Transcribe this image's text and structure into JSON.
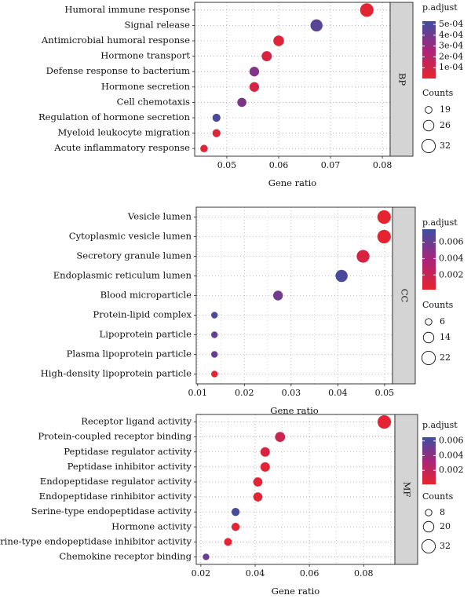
{
  "colors": {
    "low_padj": "#e8242d",
    "mid_padj": "#a8257a",
    "high_padj": "#3d4fa0",
    "strip": "#d4d4d4"
  },
  "chart_data": [
    {
      "type": "scatter",
      "panel": "BP",
      "xlabel": "Gene ratio",
      "xlim": [
        0.0438,
        0.0815
      ],
      "xticks": [
        "0.05",
        "0.06",
        "0.07",
        "0.08"
      ],
      "xtick_values": [
        0.05,
        0.06,
        0.07,
        0.08
      ],
      "terms": [
        {
          "label": "Humoral immune response",
          "ratio": 0.077,
          "padj": 2e-05,
          "count": 32
        },
        {
          "label": "Signal release",
          "ratio": 0.0673,
          "padj": 0.00046,
          "count": 29
        },
        {
          "label": "Antimicrobial humoral response",
          "ratio": 0.06,
          "padj": 4e-05,
          "count": 26
        },
        {
          "label": "Hormone transport",
          "ratio": 0.0577,
          "padj": 7e-05,
          "count": 25
        },
        {
          "label": "Defense response to bacterium",
          "ratio": 0.0553,
          "padj": 0.00036,
          "count": 24
        },
        {
          "label": "Hormone secretion",
          "ratio": 0.0553,
          "padj": 8e-05,
          "count": 24
        },
        {
          "label": "Cell chemotaxis",
          "ratio": 0.0529,
          "padj": 0.00038,
          "count": 23
        },
        {
          "label": "Regulation of hormone secretion",
          "ratio": 0.048,
          "padj": 0.00049,
          "count": 21
        },
        {
          "label": "Myeloid leukocyte migration",
          "ratio": 0.048,
          "padj": 4e-05,
          "count": 21
        },
        {
          "label": "Acute inflammatory response",
          "ratio": 0.0456,
          "padj": 3e-05,
          "count": 20
        }
      ],
      "legend": {
        "color_title": "p.adjust",
        "color_min": 0.0,
        "color_max": 0.00053,
        "color_ticks": [
          "5e-04",
          "4e-04",
          "3e-04",
          "2e-04",
          "1e-04"
        ],
        "color_tick_values": [
          0.0005,
          0.0004,
          0.0003,
          0.0002,
          0.0001
        ],
        "size_title": "Counts",
        "size_ticks": [
          "19",
          "26",
          "32"
        ],
        "size_values": [
          19,
          26,
          32
        ]
      },
      "size_range": [
        19,
        32
      ],
      "radius_range": [
        4.4,
        8.6
      ]
    },
    {
      "type": "scatter",
      "panel": "CC",
      "xlabel": "Gene ratio",
      "xlim": [
        0.0097,
        0.0517
      ],
      "xticks": [
        "0.01",
        "0.02",
        "0.03",
        "0.04",
        "0.05"
      ],
      "xtick_values": [
        0.01,
        0.02,
        0.03,
        0.04,
        0.05
      ],
      "terms": [
        {
          "label": "Vesicle lumen",
          "ratio": 0.0499,
          "padj": 0.0003,
          "count": 22
        },
        {
          "label": "Cytoplasmic vesicle lumen",
          "ratio": 0.0499,
          "padj": 0.0003,
          "count": 22
        },
        {
          "label": "Secretory granule lumen",
          "ratio": 0.0454,
          "padj": 0.0011,
          "count": 20
        },
        {
          "label": "Endoplasmic reticulum lumen",
          "ratio": 0.0408,
          "padj": 0.0072,
          "count": 18
        },
        {
          "label": "Blood microparticle",
          "ratio": 0.0272,
          "padj": 0.0058,
          "count": 12
        },
        {
          "label": "Protein-lipid complex",
          "ratio": 0.0136,
          "padj": 0.0072,
          "count": 6
        },
        {
          "label": "Lipoprotein particle",
          "ratio": 0.0136,
          "padj": 0.0062,
          "count": 6
        },
        {
          "label": "Plasma lipoprotein particle",
          "ratio": 0.0136,
          "padj": 0.0062,
          "count": 6
        },
        {
          "label": "High-density lipoprotein particle",
          "ratio": 0.0136,
          "padj": 0.0003,
          "count": 6
        }
      ],
      "legend": {
        "color_title": "p.adjust",
        "color_min": 0.0002,
        "color_max": 0.0076,
        "color_ticks": [
          "0.006",
          "0.004",
          "0.002"
        ],
        "color_tick_values": [
          0.006,
          0.004,
          0.002
        ],
        "size_title": "Counts",
        "size_ticks": [
          "6",
          "14",
          "22"
        ],
        "size_values": [
          6,
          14,
          22
        ]
      },
      "size_range": [
        6,
        22
      ],
      "radius_range": [
        4.2,
        8.6
      ]
    },
    {
      "type": "scatter",
      "panel": "MF",
      "xlabel": "Gene ratio",
      "xlim": [
        0.0183,
        0.0915
      ],
      "xticks": [
        "0.02",
        "0.04",
        "0.06",
        "0.08"
      ],
      "xtick_values": [
        0.02,
        0.04,
        0.06,
        0.08
      ],
      "terms": [
        {
          "label": "Receptor ligand activity",
          "ratio": 0.0876,
          "padj": 0.0003,
          "count": 32
        },
        {
          "label": "Protein-coupled receptor binding",
          "ratio": 0.0492,
          "padj": 0.0016,
          "count": 18
        },
        {
          "label": "Peptidase regulator activity",
          "ratio": 0.0437,
          "padj": 0.0009,
          "count": 16
        },
        {
          "label": "Peptidase inhibitor activity",
          "ratio": 0.0437,
          "padj": 0.0003,
          "count": 16
        },
        {
          "label": "Endopeptidase regulator activity",
          "ratio": 0.041,
          "padj": 0.0003,
          "count": 15
        },
        {
          "label": "Endopeptidase rinhibitor activity",
          "ratio": 0.041,
          "padj": 0.0003,
          "count": 15
        },
        {
          "label": "Serine-type endopeptidase activity",
          "ratio": 0.0328,
          "padj": 0.0062,
          "count": 12
        },
        {
          "label": "Hormone activity",
          "ratio": 0.0328,
          "padj": 0.0003,
          "count": 12
        },
        {
          "label": "Serine-type endopeptidase inhibitor activity",
          "ratio": 0.03,
          "padj": 0.0003,
          "count": 11
        },
        {
          "label": "Chemokine receptor binding",
          "ratio": 0.0219,
          "padj": 0.0052,
          "count": 8
        }
      ],
      "legend": {
        "color_title": "p.adjust",
        "color_min": 0.0001,
        "color_max": 0.0065,
        "color_ticks": [
          "0.006",
          "0.004",
          "0.002"
        ],
        "color_tick_values": [
          0.006,
          0.004,
          0.002
        ],
        "size_title": "Counts",
        "size_ticks": [
          "8",
          "20",
          "32"
        ],
        "size_values": [
          8,
          20,
          32
        ]
      },
      "size_range": [
        8,
        32
      ],
      "radius_range": [
        4.2,
        8.6
      ]
    }
  ]
}
